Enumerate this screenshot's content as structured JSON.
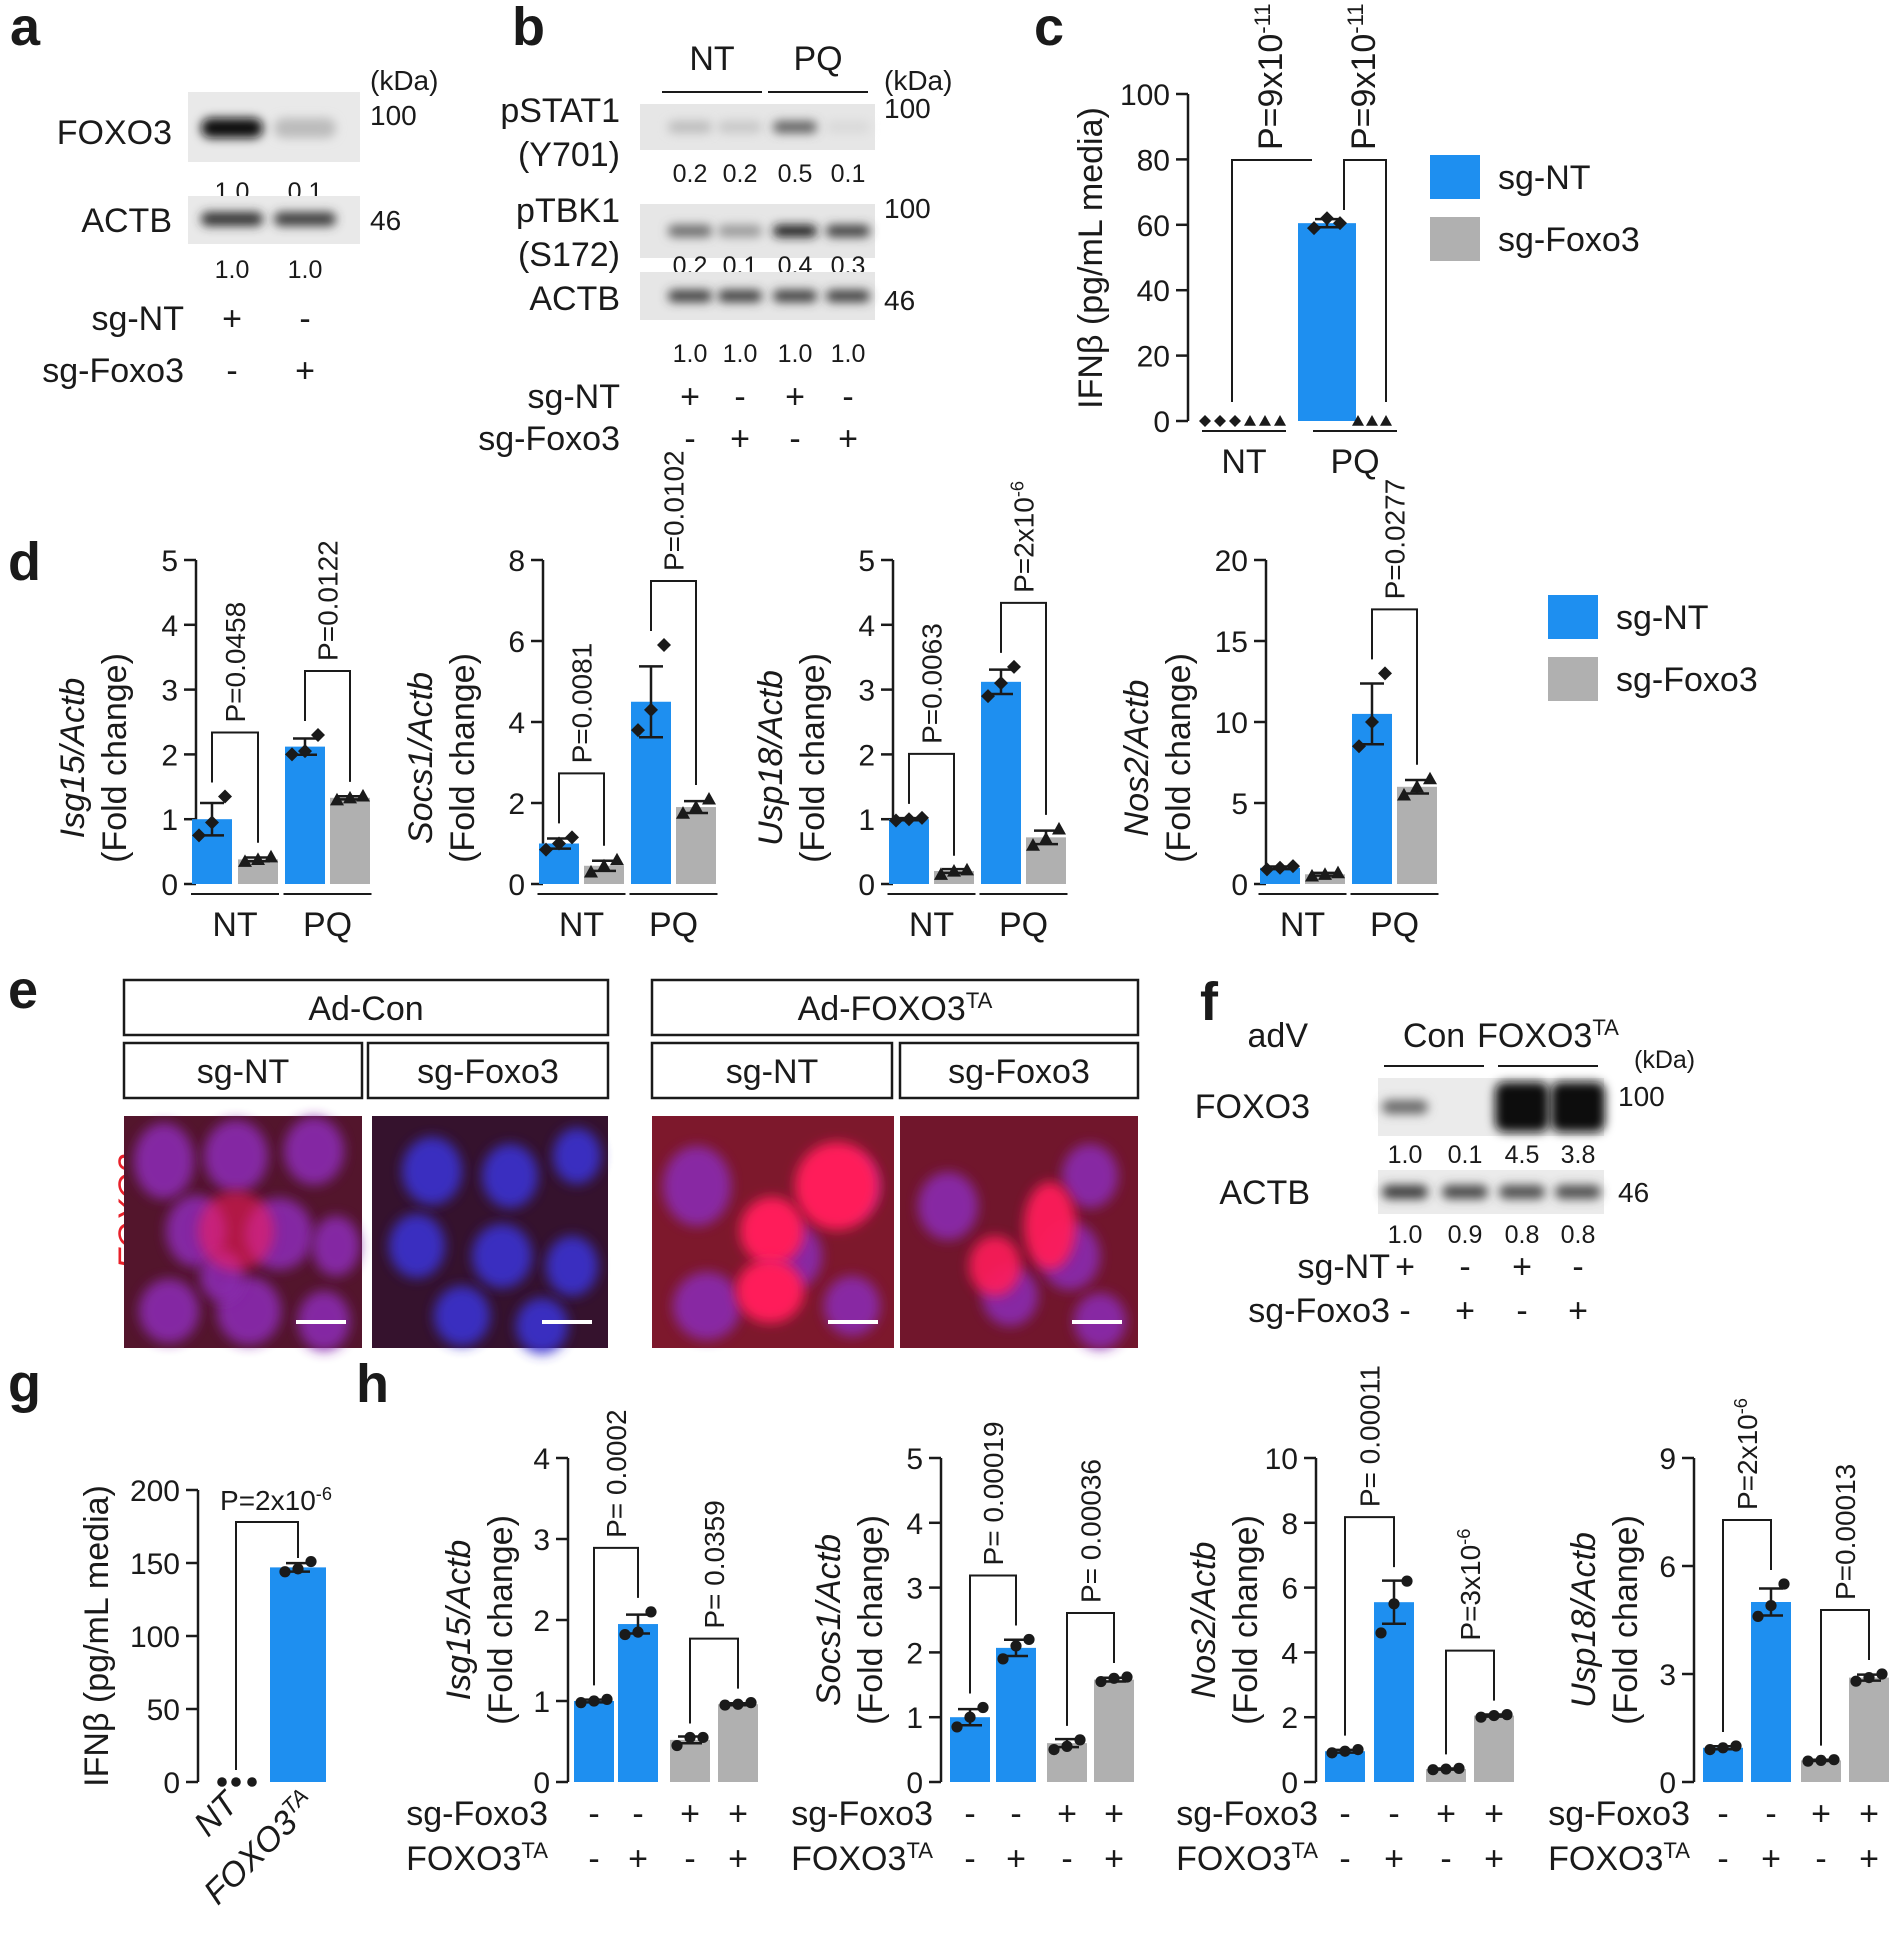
{
  "panel_letters": [
    "a",
    "b",
    "c",
    "d",
    "e",
    "f",
    "g",
    "h"
  ],
  "colors": {
    "sg_nt": "#1e8ff0",
    "sg_foxo3": "#b0b0b0",
    "foxo3_stain": "#e8202a",
    "nucleus": "#3a32d0"
  },
  "blot_a": {
    "kda_label": "(kDa)",
    "rows": [
      {
        "name": "FOXO3",
        "kda": "100",
        "quant": [
          "1.0",
          "0.1"
        ],
        "bands": [
          1.0,
          0.25
        ]
      },
      {
        "name": "ACTB",
        "kda": "46",
        "quant": [
          "1.0",
          "1.0"
        ],
        "bands": [
          0.85,
          0.8
        ]
      }
    ],
    "conditions": [
      {
        "name": "sg-NT",
        "signs": [
          "+",
          "-"
        ]
      },
      {
        "name": "sg-Foxo3",
        "signs": [
          "-",
          "+"
        ]
      }
    ]
  },
  "blot_b": {
    "kda_label": "(kDa)",
    "groups": [
      "NT",
      "PQ"
    ],
    "rows": [
      {
        "name": "pSTAT1",
        "name2": "(Y701)",
        "kda": "100",
        "quant": [
          "0.2",
          "0.2",
          "0.5",
          "0.1"
        ],
        "bands": [
          0.25,
          0.2,
          0.65,
          0.12
        ]
      },
      {
        "name": "pTBK1",
        "name2": "(S172)",
        "kda": "100",
        "quant": [
          "0.2",
          "0.1",
          "0.4",
          "0.3"
        ],
        "bands": [
          0.6,
          0.4,
          0.95,
          0.8
        ]
      },
      {
        "name": "ACTB",
        "name2": "",
        "kda": "46",
        "quant": [
          "1.0",
          "1.0",
          "1.0",
          "1.0"
        ],
        "bands": [
          0.8,
          0.8,
          0.8,
          0.8
        ]
      }
    ],
    "conditions": [
      {
        "name": "sg-NT",
        "signs": [
          "+",
          "-",
          "+",
          "-"
        ]
      },
      {
        "name": "sg-Foxo3",
        "signs": [
          "-",
          "+",
          "-",
          "+"
        ]
      }
    ]
  },
  "legend": {
    "items": [
      "sg-NT",
      "sg-Foxo3"
    ]
  },
  "chart_data": [
    {
      "panel": "c",
      "type": "bar",
      "ylabel": "IFNβ (pg/mL media)",
      "ylim": [
        0,
        100
      ],
      "yticks": [
        0,
        20,
        40,
        60,
        80,
        100
      ],
      "groups": [
        "NT",
        "PQ"
      ],
      "series": [
        {
          "name": "sg-NT",
          "values": [
            0,
            60.5
          ],
          "points": [
            [
              0,
              0,
              0
            ],
            [
              59,
              62,
              60.5
            ]
          ]
        },
        {
          "name": "sg-Foxo3",
          "values": [
            0,
            0
          ],
          "points": [
            [
              0,
              0,
              0
            ],
            [
              0,
              0,
              0
            ]
          ]
        }
      ],
      "pvalues": [
        {
          "text": "P=9x10",
          "sup": "-11",
          "from": [
            0,
            0
          ],
          "to": [
            1,
            0
          ]
        },
        {
          "text": "P=9x10",
          "sup": "-11",
          "from": [
            1,
            0
          ],
          "to": [
            1,
            1
          ]
        }
      ]
    },
    {
      "panel": "d",
      "type": "bar",
      "ylabel": "Isg15/Actb",
      "ylabel2": "(Fold change)",
      "ylim": [
        0,
        5
      ],
      "yticks": [
        0,
        1,
        2,
        3,
        4,
        5
      ],
      "groups": [
        "NT",
        "PQ"
      ],
      "series": [
        {
          "name": "sg-NT",
          "values": [
            1.0,
            2.12
          ],
          "points": [
            [
              0.75,
              0.95,
              1.35
            ],
            [
              2.0,
              2.05,
              2.3
            ]
          ]
        },
        {
          "name": "sg-Foxo3",
          "values": [
            0.38,
            1.33
          ],
          "points": [
            [
              0.35,
              0.38,
              0.42
            ],
            [
              1.3,
              1.33,
              1.36
            ]
          ]
        }
      ],
      "pvalues": [
        {
          "text": "P=0.0458",
          "sup": "",
          "from": [
            0,
            0
          ],
          "to": [
            0,
            1
          ]
        },
        {
          "text": "P=0.0122",
          "sup": "",
          "from": [
            1,
            0
          ],
          "to": [
            1,
            1
          ]
        }
      ]
    },
    {
      "panel": "d",
      "type": "bar",
      "ylabel": "Socs1/Actb",
      "ylabel2": "(Fold change)",
      "ylim": [
        0,
        8
      ],
      "yticks": [
        0,
        2,
        4,
        6,
        8
      ],
      "groups": [
        "NT",
        "PQ"
      ],
      "series": [
        {
          "name": "sg-NT",
          "values": [
            1.0,
            4.5
          ],
          "points": [
            [
              0.85,
              1.0,
              1.15
            ],
            [
              3.8,
              4.3,
              5.9
            ]
          ]
        },
        {
          "name": "sg-Foxo3",
          "values": [
            0.45,
            1.9
          ],
          "points": [
            [
              0.3,
              0.45,
              0.6
            ],
            [
              1.75,
              1.9,
              2.1
            ]
          ]
        }
      ],
      "pvalues": [
        {
          "text": "P=0.0081",
          "sup": "",
          "from": [
            0,
            0
          ],
          "to": [
            0,
            1
          ]
        },
        {
          "text": "P=0.0102",
          "sup": "",
          "from": [
            1,
            0
          ],
          "to": [
            1,
            1
          ]
        }
      ]
    },
    {
      "panel": "d",
      "type": "bar",
      "ylabel": "Usp18/Actb",
      "ylabel2": "(Fold change)",
      "ylim": [
        0,
        5
      ],
      "yticks": [
        0,
        1,
        2,
        3,
        4,
        5
      ],
      "groups": [
        "NT",
        "PQ"
      ],
      "series": [
        {
          "name": "sg-NT",
          "values": [
            1.0,
            3.12
          ],
          "points": [
            [
              0.98,
              1.0,
              1.02
            ],
            [
              2.9,
              3.1,
              3.35
            ]
          ]
        },
        {
          "name": "sg-Foxo3",
          "values": [
            0.2,
            0.72
          ],
          "points": [
            [
              0.15,
              0.2,
              0.22
            ],
            [
              0.6,
              0.7,
              0.85
            ]
          ]
        }
      ],
      "pvalues": [
        {
          "text": "P=0.0063",
          "sup": "",
          "from": [
            0,
            0
          ],
          "to": [
            0,
            1
          ]
        },
        {
          "text": "P=2x10",
          "sup": "-6",
          "from": [
            1,
            0
          ],
          "to": [
            1,
            1
          ]
        }
      ]
    },
    {
      "panel": "d",
      "type": "bar",
      "ylabel": "Nos2/Actb",
      "ylabel2": "(Fold change)",
      "ylim": [
        0,
        20
      ],
      "yticks": [
        0,
        5,
        10,
        15,
        20
      ],
      "groups": [
        "NT",
        "PQ"
      ],
      "series": [
        {
          "name": "sg-NT",
          "values": [
            1.0,
            10.5
          ],
          "points": [
            [
              0.9,
              1.0,
              1.1
            ],
            [
              8.5,
              10.0,
              13.0
            ]
          ]
        },
        {
          "name": "sg-Foxo3",
          "values": [
            0.6,
            6.0
          ],
          "points": [
            [
              0.5,
              0.6,
              0.7
            ],
            [
              5.5,
              6.0,
              6.5
            ]
          ]
        }
      ],
      "pvalues": [
        {
          "text": "P=0.0277",
          "sup": "",
          "from": [
            1,
            0
          ],
          "to": [
            1,
            1
          ]
        }
      ]
    },
    {
      "panel": "g",
      "type": "bar",
      "ylabel": "IFNβ (pg/mL media)",
      "ylim": [
        0,
        200
      ],
      "yticks": [
        0,
        50,
        100,
        150,
        200
      ],
      "categories": [
        {
          "text": "NT",
          "sup": ""
        },
        {
          "text": "FOXO3",
          "sup": "TA"
        }
      ],
      "series": [
        {
          "name": "sg-NT",
          "values": [
            0,
            147
          ],
          "points": [
            [
              0,
              0,
              0
            ],
            [
              144,
              146,
              151
            ]
          ]
        }
      ],
      "pvalues": [
        {
          "text": "P=2x10",
          "sup": "-6",
          "from": 0,
          "to": 1
        }
      ]
    },
    {
      "panel": "h",
      "type": "bar",
      "ylabel": "Isg15/Actb",
      "ylabel2": "(Fold change)",
      "ylim": [
        0,
        4
      ],
      "yticks": [
        0,
        1,
        2,
        3,
        4
      ],
      "values": [
        1.0,
        1.95,
        0.52,
        0.96
      ],
      "points": [
        [
          0.98,
          1.0,
          1.02
        ],
        [
          1.82,
          1.85,
          2.1
        ],
        [
          0.45,
          0.55,
          0.55
        ],
        [
          0.95,
          0.96,
          0.98
        ]
      ],
      "conditions": [
        {
          "name": "sg-Foxo3",
          "signs": [
            "-",
            "-",
            "+",
            "+"
          ]
        },
        {
          "name": "FOXO3",
          "sup": "TA",
          "signs": [
            "-",
            "+",
            "-",
            "+"
          ]
        }
      ],
      "pvalues": [
        {
          "text": "P= 0.0002",
          "sup": "",
          "from": 0,
          "to": 1
        },
        {
          "text": "P= 0.0359",
          "sup": "",
          "from": 2,
          "to": 3
        }
      ]
    },
    {
      "panel": "h",
      "type": "bar",
      "ylabel": "Socs1/Actb",
      "ylabel2": "(Fold change)",
      "ylim": [
        0,
        5
      ],
      "yticks": [
        0,
        1,
        2,
        3,
        4,
        5
      ],
      "values": [
        1.0,
        2.07,
        0.6,
        1.58
      ],
      "points": [
        [
          0.85,
          1.0,
          1.15
        ],
        [
          1.9,
          2.1,
          2.2
        ],
        [
          0.5,
          0.55,
          0.65
        ],
        [
          1.55,
          1.6,
          1.62
        ]
      ],
      "conditions": [
        {
          "name": "sg-Foxo3",
          "signs": [
            "-",
            "-",
            "+",
            "+"
          ]
        },
        {
          "name": "FOXO3",
          "sup": "TA",
          "signs": [
            "-",
            "+",
            "-",
            "+"
          ]
        }
      ],
      "pvalues": [
        {
          "text": "P= 0.00019",
          "sup": "",
          "from": 0,
          "to": 1
        },
        {
          "text": "P= 0.00036",
          "sup": "",
          "from": 2,
          "to": 3
        }
      ]
    },
    {
      "panel": "h",
      "type": "bar",
      "ylabel": "Nos2/Actb",
      "ylabel2": "(Fold change)",
      "ylim": [
        0,
        10
      ],
      "yticks": [
        0,
        2,
        4,
        6,
        8,
        10
      ],
      "values": [
        0.95,
        5.55,
        0.4,
        2.05
      ],
      "points": [
        [
          0.9,
          0.95,
          1.0
        ],
        [
          4.6,
          5.5,
          6.2
        ],
        [
          0.38,
          0.4,
          0.42
        ],
        [
          2.0,
          2.05,
          2.08
        ]
      ],
      "conditions": [
        {
          "name": "sg-Foxo3",
          "signs": [
            "-",
            "-",
            "+",
            "+"
          ]
        },
        {
          "name": "FOXO3",
          "sup": "TA",
          "signs": [
            "-",
            "+",
            "-",
            "+"
          ]
        }
      ],
      "pvalues": [
        {
          "text": "P= 0.00011",
          "sup": "",
          "from": 0,
          "to": 1
        },
        {
          "text": "P=3x10",
          "sup": "-6",
          "from": 2,
          "to": 3
        }
      ]
    },
    {
      "panel": "h",
      "type": "bar",
      "ylabel": "Usp18/Actb",
      "ylabel2": "(Fold change)",
      "ylim": [
        0,
        9
      ],
      "yticks": [
        0,
        3,
        6,
        9
      ],
      "values": [
        0.95,
        5.0,
        0.6,
        2.9
      ],
      "points": [
        [
          0.9,
          0.95,
          1.0
        ],
        [
          4.6,
          4.9,
          5.5
        ],
        [
          0.58,
          0.6,
          0.62
        ],
        [
          2.8,
          2.9,
          3.0
        ]
      ],
      "conditions": [
        {
          "name": "sg-Foxo3",
          "signs": [
            "-",
            "-",
            "+",
            "+"
          ]
        },
        {
          "name": "FOXO3",
          "sup": "TA",
          "signs": [
            "-",
            "+",
            "-",
            "+"
          ]
        }
      ],
      "pvalues": [
        {
          "text": "P=2x10",
          "sup": "-6",
          "from": 0,
          "to": 1
        },
        {
          "text": "P=0.00013",
          "sup": "",
          "from": 2,
          "to": 3
        }
      ]
    }
  ],
  "panel_e": {
    "stain_label": "FOXO3",
    "headers": [
      {
        "text": "Ad-Con",
        "sup": ""
      },
      {
        "text": "Ad-FOXO3",
        "sup": "TA"
      }
    ],
    "subheaders": [
      "sg-NT",
      "sg-Foxo3",
      "sg-NT",
      "sg-Foxo3"
    ],
    "intensity": [
      0.45,
      0.05,
      1.0,
      0.85
    ]
  },
  "blot_f": {
    "adv_label": "adV",
    "groups": [
      {
        "text": "Con",
        "sup": ""
      },
      {
        "text": "FOXO3",
        "sup": "TA"
      }
    ],
    "kda_label": "(kDa)",
    "rows": [
      {
        "name": "FOXO3",
        "kda": "100",
        "quant": [
          "1.0",
          "0.1",
          "4.5",
          "3.8"
        ],
        "bands": [
          0.6,
          0.0,
          1.0,
          1.0
        ]
      },
      {
        "name": "ACTB",
        "kda": "46",
        "quant": [
          "1.0",
          "0.9",
          "0.8",
          "0.8"
        ],
        "bands": [
          0.8,
          0.75,
          0.72,
          0.72
        ]
      }
    ],
    "conditions": [
      {
        "name": "sg-NT",
        "signs": [
          "+",
          "-",
          "+",
          "-"
        ]
      },
      {
        "name": "sg-Foxo3",
        "signs": [
          "-",
          "+",
          "-",
          "+"
        ]
      }
    ]
  }
}
